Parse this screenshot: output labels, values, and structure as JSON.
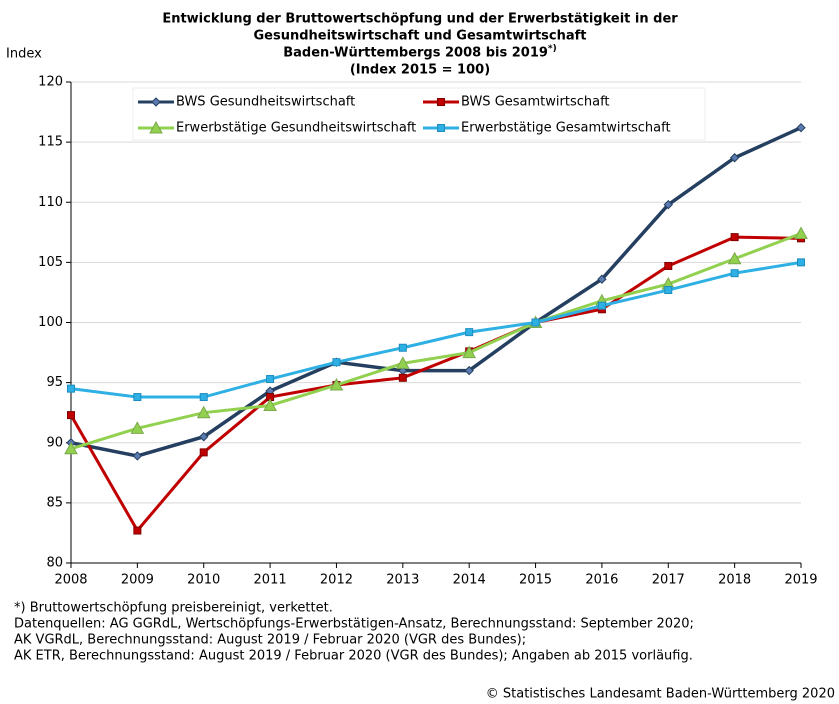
{
  "chart_data": {
    "type": "line",
    "title": [
      "Entwicklung  der Bruttowertschöpfung  und der Erwerbstätigkeit  in der",
      "Gesundheitswirtschaft  und Gesamtwirtschaft",
      "Baden-Württembergs  2008  bis 2019",
      "(Index 2015 = 100)"
    ],
    "title_superscript": "*)",
    "y_label": "Index",
    "categories": [
      "2008",
      "2009",
      "2010",
      "2011",
      "2012",
      "2013",
      "2014",
      "2015",
      "2016",
      "2017",
      "2018",
      "2019"
    ],
    "series": [
      {
        "name": "BWS Gesundheitswirtschaft",
        "color": "#243f60",
        "marker": "diamond",
        "values": [
          90.0,
          88.9,
          90.5,
          94.3,
          96.7,
          96.0,
          96.0,
          100,
          103.6,
          109.8,
          113.7,
          116.2
        ]
      },
      {
        "name": "BWS Gesamtwirtschaft",
        "color": "#c00000",
        "marker": "square",
        "values": [
          92.3,
          82.7,
          89.2,
          93.8,
          94.8,
          95.4,
          97.6,
          100,
          101.1,
          104.7,
          107.1,
          107.0
        ]
      },
      {
        "name": "Erwerbstätige Gesundheitswirtschaft",
        "color": "#92d050",
        "marker": "triangle",
        "values": [
          89.5,
          91.2,
          92.5,
          93.1,
          94.8,
          96.6,
          97.5,
          100,
          101.8,
          103.2,
          105.3,
          107.4
        ]
      },
      {
        "name": "Erwerbstätige Gesamtwirtschaft",
        "color": "#2eb0e4",
        "marker": "square",
        "values": [
          94.5,
          93.8,
          93.8,
          95.3,
          96.7,
          97.9,
          99.2,
          100,
          101.4,
          102.7,
          104.1,
          105.0
        ]
      }
    ],
    "ylim": [
      80,
      120
    ],
    "yticks": [
      80,
      85,
      90,
      95,
      100,
      105,
      110,
      115,
      120
    ],
    "grid": true,
    "footnotes": [
      "*) Bruttowertschöpfung preisbereinigt,  verkettet.",
      "Datenquellen:  AG GGRdL,  Wertschöpfungs-Erwerbstätigen-Ansatz, Berechnungsstand:  September 2020;",
      "AK VGRdL,  Berechnungsstand:  August 2019 / Februar 2020  (VGR des Bundes);",
      "AK ETR, Berechnungsstand:  August 2019  / Februar 2020  (VGR des Bundes);  Angaben ab 2015  vorläufig."
    ],
    "source": "© Statistisches Landesamt  Baden-Württemberg  2020"
  }
}
